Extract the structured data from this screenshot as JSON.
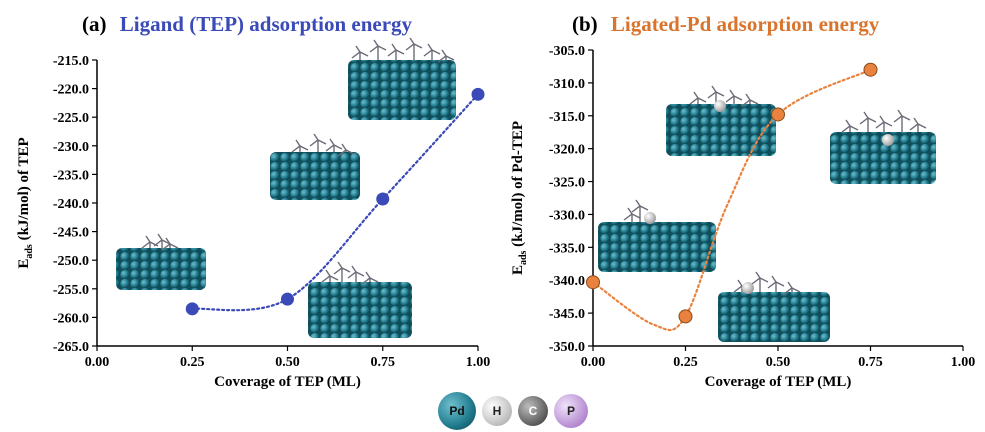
{
  "chart_data": [
    {
      "type": "line",
      "panel": "(a)",
      "title": "Ligand (TEP) adsorption energy",
      "title_color": "#3a4ab8",
      "xlabel": "Coverage of TEP (ML)",
      "ylabel_main": "E",
      "ylabel_sub": "ads",
      "ylabel_rest": " (kJ/mol) of TEP",
      "xlim": [
        0.0,
        1.0
      ],
      "ylim": [
        -265.0,
        -215.0
      ],
      "xticks": [
        "0.00",
        "0.25",
        "0.50",
        "0.75",
        "1.00"
      ],
      "yticks": [
        "-215.0",
        "-220.0",
        "-225.0",
        "-230.0",
        "-235.0",
        "-240.0",
        "-245.0",
        "-250.0",
        "-255.0",
        "-260.0",
        "-265.0"
      ],
      "series": [
        {
          "x": [
            0.25,
            0.5,
            0.75,
            1.0
          ],
          "y": [
            -258.5,
            -256.8,
            -239.3,
            -221.0
          ],
          "color": "#3a4ab8",
          "line": "dotted"
        }
      ]
    },
    {
      "type": "line",
      "panel": "(b)",
      "title": "Ligated-Pd adsorption energy",
      "title_color": "#d9742c",
      "xlabel": "Coverage of TEP (ML)",
      "ylabel_main": "E",
      "ylabel_sub": "ads",
      "ylabel_rest": " (kJ/mol) of Pd-TEP",
      "xlim": [
        0.0,
        1.0
      ],
      "ylim": [
        -350.0,
        -305.0
      ],
      "xticks": [
        "0.00",
        "0.25",
        "0.50",
        "0.75",
        "1.00"
      ],
      "yticks": [
        "-305.0",
        "-310.0",
        "-315.0",
        "-320.0",
        "-325.0",
        "-330.0",
        "-335.0",
        "-340.0",
        "-345.0",
        "-350.0"
      ],
      "series": [
        {
          "x": [
            0.0,
            0.25,
            0.5,
            0.75
          ],
          "y": [
            -340.3,
            -345.5,
            -314.8,
            -308.0
          ],
          "color": "#e8823e",
          "line": "dotted"
        }
      ]
    }
  ],
  "legend_atoms": [
    {
      "symbol": "Pd",
      "color": "#1f7a8c"
    },
    {
      "symbol": "H",
      "color": "#e6e6e6"
    },
    {
      "symbol": "C",
      "color": "#555555"
    },
    {
      "symbol": "P",
      "color": "#c9a2e0"
    }
  ]
}
